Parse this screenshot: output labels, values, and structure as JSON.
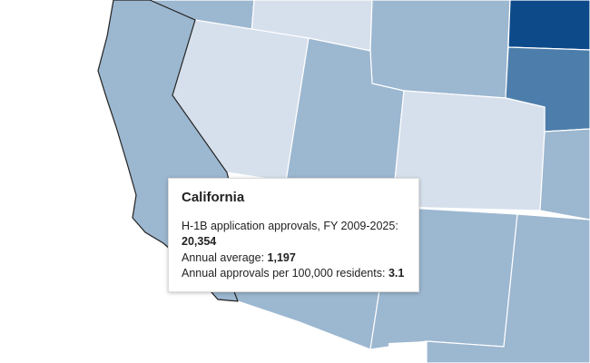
{
  "tooltip": {
    "title": "California",
    "lines": [
      {
        "label": "H-1B application approvals, FY 2009-2025:",
        "value": "20,354"
      },
      {
        "label": "Annual average:",
        "value": "1,197"
      },
      {
        "label": "Annual approvals per 100,000 residents:",
        "value": "3.1"
      }
    ]
  }
}
